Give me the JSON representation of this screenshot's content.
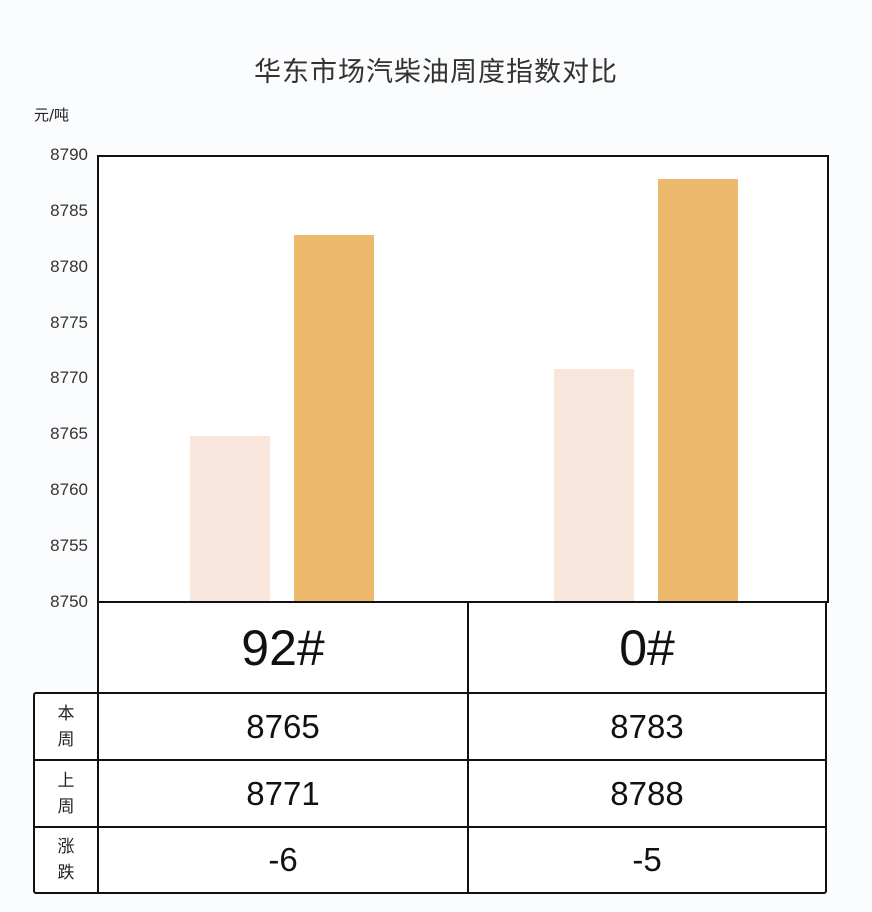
{
  "title": "华东市场汽柴油周度指数对比",
  "unit": "元/吨",
  "y_ticks": [
    "8790",
    "8785",
    "8780",
    "8775",
    "8770",
    "8765",
    "8760",
    "8755",
    "8750"
  ],
  "colors": {
    "light_bar": "#f8e5dc",
    "orange_bar": "#ebb86c",
    "border": "#111111"
  },
  "table": {
    "products": [
      "92#",
      "0#"
    ],
    "rows": [
      {
        "label": "本周",
        "values": [
          "8765",
          "8783"
        ]
      },
      {
        "label": "上周",
        "values": [
          "8771",
          "8788"
        ]
      },
      {
        "label": "涨跌",
        "values": [
          "-6",
          "-5"
        ]
      }
    ]
  },
  "chart_data": {
    "type": "bar",
    "title": "华东市场汽柴油周度指数对比",
    "xlabel": "",
    "ylabel": "元/吨",
    "ylim": [
      8750,
      8790
    ],
    "yticks": [
      8750,
      8755,
      8760,
      8765,
      8770,
      8775,
      8780,
      8785,
      8790
    ],
    "categories": [
      "92#",
      "0#"
    ],
    "series": [
      {
        "name": "light bar",
        "color": "#f8e5dc",
        "values": [
          8765,
          8771
        ]
      },
      {
        "name": "orange bar",
        "color": "#ebb86c",
        "values": [
          8783,
          8788
        ]
      }
    ],
    "table": {
      "本周": {
        "92#": 8765,
        "0#": 8783
      },
      "上周": {
        "92#": 8771,
        "0#": 8788
      },
      "涨跌": {
        "92#": -6,
        "0#": -5
      }
    },
    "grid": false,
    "legend": "none"
  }
}
